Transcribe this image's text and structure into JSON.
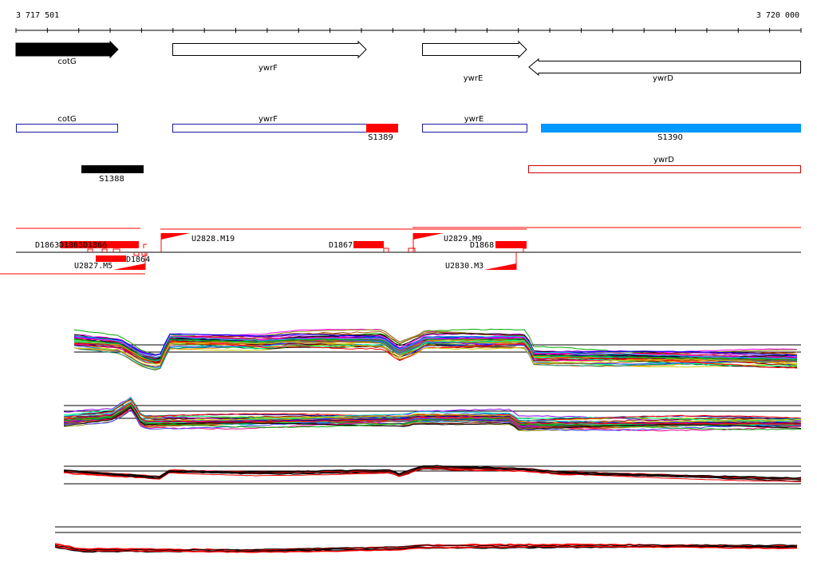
{
  "coords": {
    "start": "3 717 501",
    "end": "3 720 000"
  },
  "colors": {
    "black": "#000000",
    "red": "#ff0000",
    "blue": "#1a1aa6",
    "cyan": "#0099ff",
    "outline_red": "#cc0000"
  },
  "genes_track": {
    "cotG": "cotG",
    "ywrF": "ywrF",
    "ywrE": "ywrE",
    "ywrD": "ywrD"
  },
  "segments_track": {
    "cotG": "cotG",
    "ywrF": "ywrF",
    "ywrE": "ywrE",
    "S1389": "S1389",
    "S1390": "S1390",
    "S1388": "S1388",
    "ywrD": "ywrD"
  },
  "features_track": {
    "D1863": "D1863",
    "D1865": "D1865",
    "D1866": "D1866",
    "D1864": "D1864",
    "D1867": "D1867",
    "D1868": "D1868",
    "U2827": "U2827.M5",
    "U2828": "U2828.M19",
    "U2829": "U2829.M9",
    "U2830": "U2830.M3"
  }
}
